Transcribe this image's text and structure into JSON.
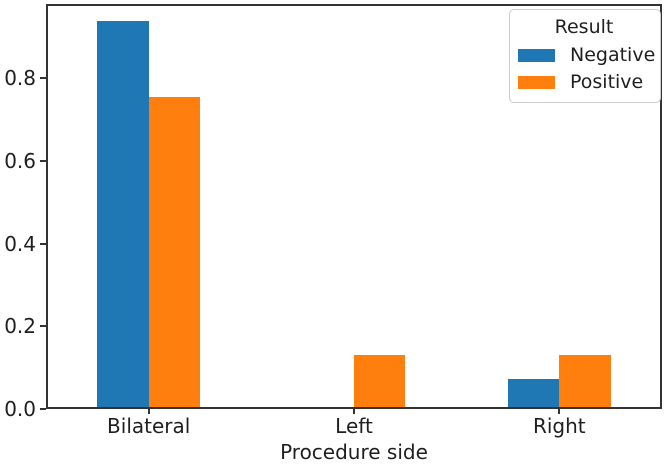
{
  "figure": {
    "background": "#ffffff",
    "spine_color": "#333333",
    "text_color": "#1f1f1f",
    "legend_border_color": "#cccccc"
  },
  "chart_data": {
    "type": "bar",
    "title": "",
    "xlabel": "Procedure side",
    "ylabel": "",
    "categories": [
      "Bilateral",
      "Left",
      "Right"
    ],
    "series": [
      {
        "name": "Negative",
        "color": "#1f77b4",
        "values": [
          0.933,
          0.0,
          0.067
        ]
      },
      {
        "name": "Positive",
        "color": "#ff7f0e",
        "values": [
          0.75,
          0.125,
          0.125
        ]
      }
    ],
    "y_ticks": [
      0.0,
      0.2,
      0.4,
      0.6,
      0.8
    ],
    "y_tick_labels": [
      "0.0",
      "0.2",
      "0.4",
      "0.6",
      "0.8"
    ],
    "ylim": [
      0,
      0.979
    ],
    "bar_width_fraction": 0.25,
    "grid": false,
    "legend": {
      "title": "Result",
      "position": "upper right"
    }
  }
}
